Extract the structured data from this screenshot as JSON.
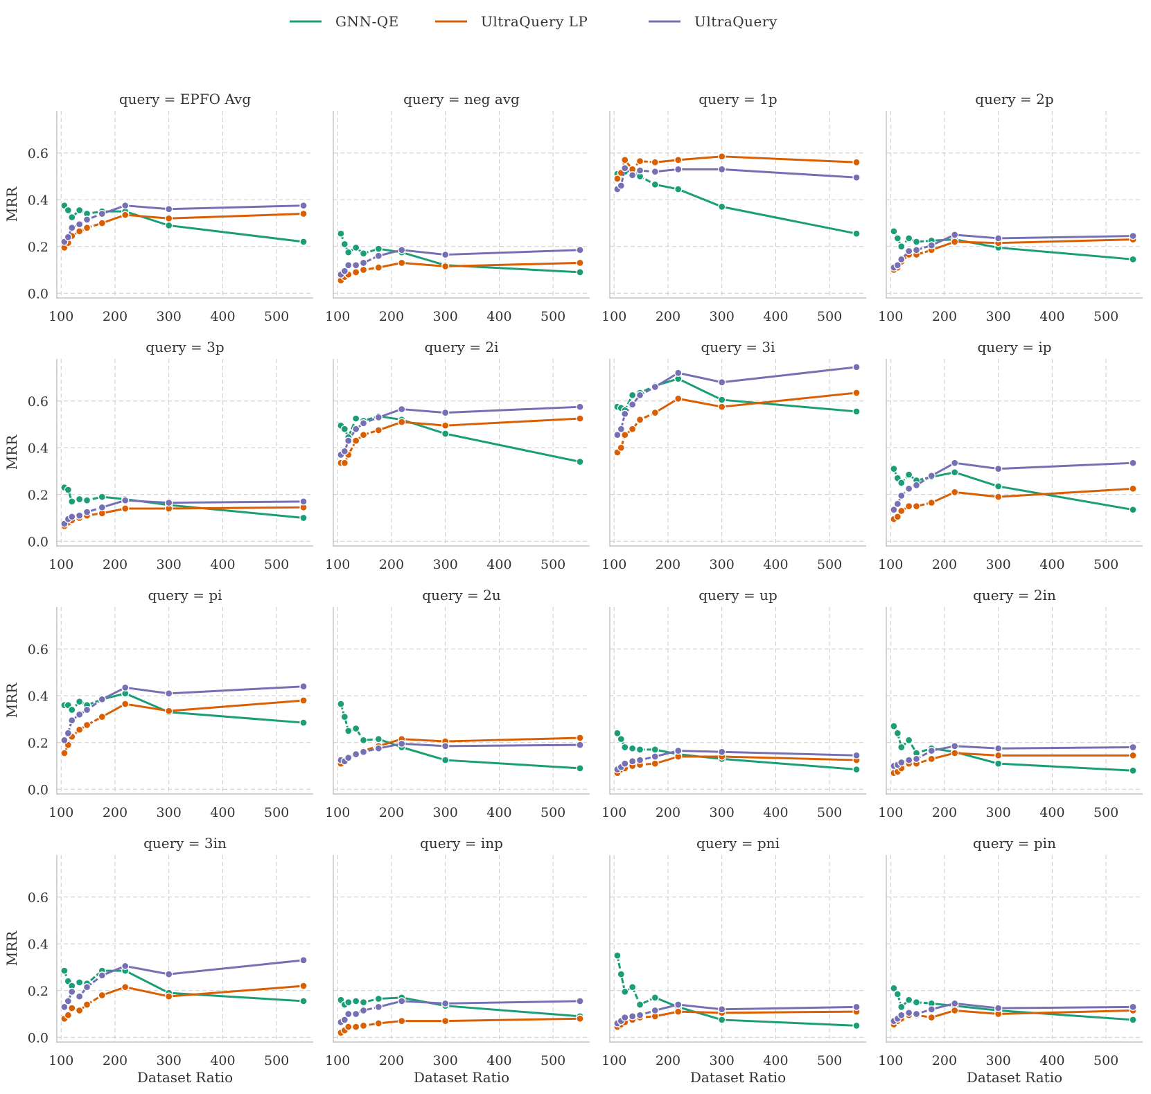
{
  "chart_data": {
    "type": "line",
    "xlabel": "Dataset Ratio",
    "ylabel": "MRR",
    "xlim": [
      92,
      568
    ],
    "ylim": [
      -0.02,
      0.78
    ],
    "xticks": [
      100,
      200,
      300,
      400,
      500
    ],
    "yticks": [
      0.0,
      0.2,
      0.4,
      0.6
    ],
    "grid": true,
    "legend_position": "top-center",
    "x": [
      106,
      113,
      120,
      134,
      148,
      176,
      219,
      300,
      550
    ],
    "series_styles": [
      {
        "name": "GNN-QE",
        "color": "#1b9e77"
      },
      {
        "name": "UltraQuery LP",
        "color": "#d95f02"
      },
      {
        "name": "UltraQuery",
        "color": "#7570b3"
      }
    ],
    "legend": [
      "GNN-QE",
      "UltraQuery LP",
      "UltraQuery"
    ],
    "panels": [
      {
        "title": "query = EPFO Avg",
        "series": [
          {
            "name": "GNN-QE",
            "values": [
              0.375,
              0.355,
              0.325,
              0.355,
              0.34,
              0.35,
              0.35,
              0.29,
              0.22
            ]
          },
          {
            "name": "UltraQuery LP",
            "values": [
              0.195,
              0.215,
              0.245,
              0.265,
              0.28,
              0.3,
              0.335,
              0.32,
              0.34
            ]
          },
          {
            "name": "UltraQuery",
            "values": [
              0.22,
              0.24,
              0.28,
              0.295,
              0.315,
              0.34,
              0.375,
              0.36,
              0.375
            ]
          }
        ]
      },
      {
        "title": "query = neg avg",
        "series": [
          {
            "name": "GNN-QE",
            "values": [
              0.255,
              0.21,
              0.175,
              0.195,
              0.17,
              0.19,
              0.175,
              0.12,
              0.09
            ]
          },
          {
            "name": "UltraQuery LP",
            "values": [
              0.055,
              0.07,
              0.08,
              0.09,
              0.1,
              0.11,
              0.13,
              0.115,
              0.13
            ]
          },
          {
            "name": "UltraQuery",
            "values": [
              0.08,
              0.095,
              0.12,
              0.12,
              0.13,
              0.16,
              0.185,
              0.165,
              0.185
            ]
          }
        ]
      },
      {
        "title": "query = 1p",
        "series": [
          {
            "name": "GNN-QE",
            "values": [
              0.51,
              0.51,
              0.52,
              0.515,
              0.5,
              0.465,
              0.445,
              0.37,
              0.255
            ]
          },
          {
            "name": "UltraQuery LP",
            "values": [
              0.49,
              0.515,
              0.57,
              0.53,
              0.565,
              0.56,
              0.57,
              0.585,
              0.56
            ]
          },
          {
            "name": "UltraQuery",
            "values": [
              0.445,
              0.46,
              0.535,
              0.505,
              0.525,
              0.52,
              0.53,
              0.53,
              0.495
            ]
          }
        ]
      },
      {
        "title": "query = 2p",
        "series": [
          {
            "name": "GNN-QE",
            "values": [
              0.265,
              0.235,
              0.2,
              0.235,
              0.22,
              0.225,
              0.23,
              0.195,
              0.145
            ]
          },
          {
            "name": "UltraQuery LP",
            "values": [
              0.1,
              0.11,
              0.135,
              0.165,
              0.165,
              0.185,
              0.22,
              0.215,
              0.23
            ]
          },
          {
            "name": "UltraQuery",
            "values": [
              0.11,
              0.12,
              0.145,
              0.18,
              0.185,
              0.205,
              0.25,
              0.235,
              0.245
            ]
          }
        ]
      },
      {
        "title": "query = 3p",
        "series": [
          {
            "name": "GNN-QE",
            "values": [
              0.23,
              0.22,
              0.17,
              0.18,
              0.175,
              0.19,
              0.18,
              0.155,
              0.1
            ]
          },
          {
            "name": "UltraQuery LP",
            "values": [
              0.065,
              0.08,
              0.09,
              0.1,
              0.11,
              0.12,
              0.14,
              0.14,
              0.145
            ]
          },
          {
            "name": "UltraQuery",
            "values": [
              0.075,
              0.095,
              0.105,
              0.11,
              0.125,
              0.145,
              0.175,
              0.165,
              0.17
            ]
          }
        ]
      },
      {
        "title": "query = 2i",
        "series": [
          {
            "name": "GNN-QE",
            "values": [
              0.495,
              0.48,
              0.445,
              0.525,
              0.515,
              0.535,
              0.52,
              0.46,
              0.34
            ]
          },
          {
            "name": "UltraQuery LP",
            "values": [
              0.335,
              0.335,
              0.37,
              0.43,
              0.455,
              0.475,
              0.51,
              0.495,
              0.525
            ]
          },
          {
            "name": "UltraQuery",
            "values": [
              0.37,
              0.385,
              0.43,
              0.48,
              0.505,
              0.53,
              0.565,
              0.55,
              0.575
            ]
          }
        ]
      },
      {
        "title": "query = 3i",
        "series": [
          {
            "name": "GNN-QE",
            "values": [
              0.575,
              0.57,
              0.56,
              0.625,
              0.635,
              0.665,
              0.695,
              0.605,
              0.555
            ]
          },
          {
            "name": "UltraQuery LP",
            "values": [
              0.38,
              0.4,
              0.455,
              0.48,
              0.52,
              0.55,
              0.61,
              0.575,
              0.635
            ]
          },
          {
            "name": "UltraQuery",
            "values": [
              0.455,
              0.48,
              0.545,
              0.585,
              0.625,
              0.66,
              0.72,
              0.68,
              0.745
            ]
          }
        ]
      },
      {
        "title": "query = ip",
        "series": [
          {
            "name": "GNN-QE",
            "values": [
              0.31,
              0.27,
              0.25,
              0.285,
              0.26,
              0.275,
              0.295,
              0.235,
              0.135
            ]
          },
          {
            "name": "UltraQuery LP",
            "values": [
              0.095,
              0.105,
              0.13,
              0.15,
              0.15,
              0.165,
              0.21,
              0.19,
              0.225
            ]
          },
          {
            "name": "UltraQuery",
            "values": [
              0.135,
              0.16,
              0.195,
              0.225,
              0.24,
              0.28,
              0.335,
              0.31,
              0.335
            ]
          }
        ]
      },
      {
        "title": "query = pi",
        "series": [
          {
            "name": "GNN-QE",
            "values": [
              0.36,
              0.36,
              0.34,
              0.375,
              0.36,
              0.385,
              0.41,
              0.33,
              0.285
            ]
          },
          {
            "name": "UltraQuery LP",
            "values": [
              0.155,
              0.19,
              0.225,
              0.255,
              0.275,
              0.31,
              0.365,
              0.335,
              0.38
            ]
          },
          {
            "name": "UltraQuery",
            "values": [
              0.21,
              0.24,
              0.295,
              0.32,
              0.34,
              0.385,
              0.435,
              0.41,
              0.44
            ]
          }
        ]
      },
      {
        "title": "query = 2u",
        "series": [
          {
            "name": "GNN-QE",
            "values": [
              0.365,
              0.31,
              0.25,
              0.26,
              0.21,
              0.215,
              0.18,
              0.125,
              0.09
            ]
          },
          {
            "name": "UltraQuery LP",
            "values": [
              0.11,
              0.125,
              0.135,
              0.15,
              0.165,
              0.185,
              0.215,
              0.205,
              0.22
            ]
          },
          {
            "name": "UltraQuery",
            "values": [
              0.125,
              0.12,
              0.135,
              0.15,
              0.16,
              0.175,
              0.195,
              0.185,
              0.19
            ]
          }
        ]
      },
      {
        "title": "query = up",
        "series": [
          {
            "name": "GNN-QE",
            "values": [
              0.24,
              0.215,
              0.18,
              0.175,
              0.17,
              0.17,
              0.15,
              0.13,
              0.085
            ]
          },
          {
            "name": "UltraQuery LP",
            "values": [
              0.07,
              0.085,
              0.09,
              0.1,
              0.105,
              0.11,
              0.14,
              0.14,
              0.125
            ]
          },
          {
            "name": "UltraQuery",
            "values": [
              0.085,
              0.095,
              0.11,
              0.12,
              0.125,
              0.14,
              0.165,
              0.16,
              0.145
            ]
          }
        ]
      },
      {
        "title": "query = 2in",
        "series": [
          {
            "name": "GNN-QE",
            "values": [
              0.27,
              0.24,
              0.18,
              0.21,
              0.155,
              0.175,
              0.16,
              0.11,
              0.08
            ]
          },
          {
            "name": "UltraQuery LP",
            "values": [
              0.07,
              0.075,
              0.09,
              0.11,
              0.11,
              0.13,
              0.155,
              0.145,
              0.145
            ]
          },
          {
            "name": "UltraQuery",
            "values": [
              0.1,
              0.105,
              0.115,
              0.125,
              0.13,
              0.165,
              0.185,
              0.175,
              0.18
            ]
          }
        ]
      },
      {
        "title": "query = 3in",
        "series": [
          {
            "name": "GNN-QE",
            "values": [
              0.285,
              0.24,
              0.22,
              0.235,
              0.23,
              0.285,
              0.285,
              0.19,
              0.155
            ]
          },
          {
            "name": "UltraQuery LP",
            "values": [
              0.08,
              0.095,
              0.125,
              0.115,
              0.14,
              0.18,
              0.215,
              0.175,
              0.22
            ]
          },
          {
            "name": "UltraQuery",
            "values": [
              0.13,
              0.155,
              0.195,
              0.175,
              0.215,
              0.265,
              0.305,
              0.27,
              0.33
            ]
          }
        ]
      },
      {
        "title": "query = inp",
        "series": [
          {
            "name": "GNN-QE",
            "values": [
              0.16,
              0.14,
              0.15,
              0.155,
              0.15,
              0.165,
              0.17,
              0.135,
              0.09
            ]
          },
          {
            "name": "UltraQuery LP",
            "values": [
              0.02,
              0.03,
              0.045,
              0.045,
              0.05,
              0.06,
              0.07,
              0.07,
              0.08
            ]
          },
          {
            "name": "UltraQuery",
            "values": [
              0.065,
              0.075,
              0.1,
              0.1,
              0.115,
              0.13,
              0.155,
              0.145,
              0.155
            ]
          }
        ]
      },
      {
        "title": "query = pni",
        "series": [
          {
            "name": "GNN-QE",
            "values": [
              0.35,
              0.27,
              0.195,
              0.215,
              0.14,
              0.17,
              0.13,
              0.075,
              0.05
            ]
          },
          {
            "name": "UltraQuery LP",
            "values": [
              0.045,
              0.055,
              0.065,
              0.075,
              0.085,
              0.09,
              0.11,
              0.105,
              0.11
            ]
          },
          {
            "name": "UltraQuery",
            "values": [
              0.06,
              0.07,
              0.085,
              0.09,
              0.095,
              0.115,
              0.14,
              0.12,
              0.13
            ]
          }
        ]
      },
      {
        "title": "query = pin",
        "series": [
          {
            "name": "GNN-QE",
            "values": [
              0.21,
              0.185,
              0.13,
              0.16,
              0.15,
              0.145,
              0.135,
              0.115,
              0.075
            ]
          },
          {
            "name": "UltraQuery LP",
            "values": [
              0.055,
              0.07,
              0.08,
              0.095,
              0.095,
              0.085,
              0.115,
              0.1,
              0.115
            ]
          },
          {
            "name": "UltraQuery",
            "values": [
              0.07,
              0.08,
              0.095,
              0.105,
              0.1,
              0.12,
              0.145,
              0.125,
              0.13
            ]
          }
        ]
      }
    ]
  }
}
